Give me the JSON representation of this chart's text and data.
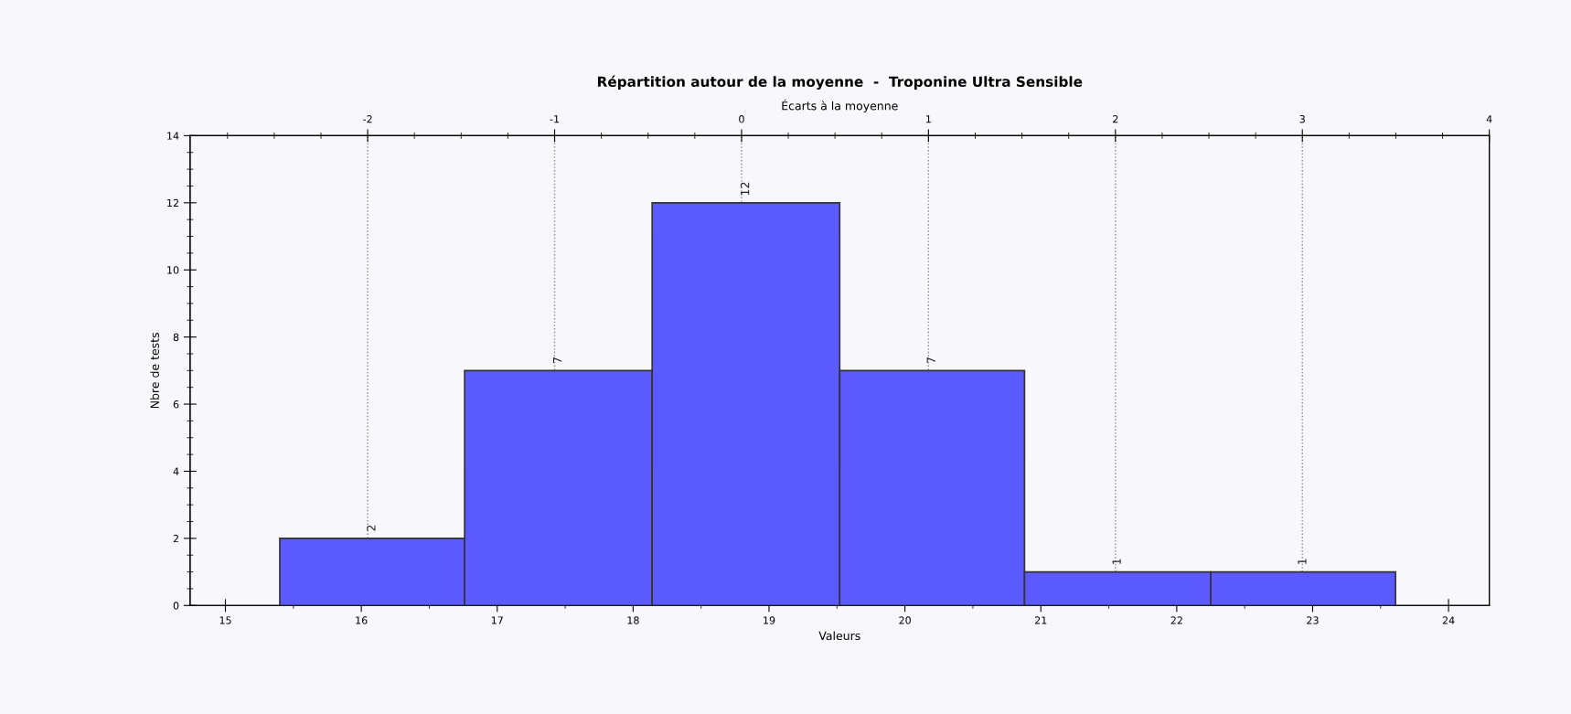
{
  "chart_data": {
    "type": "histogram",
    "title": "Répartition autour de la moyenne  -  Troponine Ultra Sensible",
    "xlabel": "Valeurs",
    "ylabel": "Nbre de tests",
    "x2label": "Écarts à la moyenne",
    "bins": [
      15.4,
      16.76,
      18.14,
      19.52,
      20.88,
      22.25,
      23.61
    ],
    "values": [
      2,
      7,
      12,
      7,
      1,
      1
    ],
    "color": "#5a5aff",
    "data_labels": true,
    "xlim": [
      14.74,
      24.3
    ],
    "xticks": [
      15,
      16,
      17,
      18,
      19,
      20,
      21,
      22,
      23,
      24
    ],
    "ylim": [
      0,
      14
    ],
    "yticks": [
      0,
      2,
      4,
      6,
      8,
      10,
      12,
      14
    ],
    "x2lim": [
      -2.95,
      4
    ],
    "x2ticks": [
      -2,
      -1,
      0,
      1,
      2,
      3,
      4
    ],
    "grid": "x",
    "line_style": "dotted"
  }
}
